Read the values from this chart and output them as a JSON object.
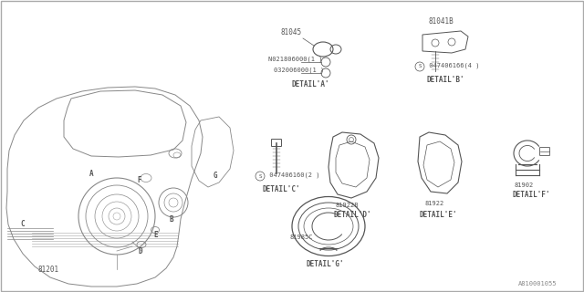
{
  "bg_color": "#ffffff",
  "border_color": "#aaaaaa",
  "line_color": "#555555",
  "line_color2": "#888888",
  "diagram_id": "A810001055",
  "labels": {
    "detail_a": "DETAIL'A'",
    "detail_b": "DETAIL'B'",
    "detail_c": "DETAIL'C'",
    "detail_d": "DETAIL'D'",
    "detail_e": "DETAIL'E'",
    "detail_f": "DETAIL'F'",
    "detail_g": "DETAIL'G'"
  },
  "part_numbers": {
    "main": "81201",
    "p81045": "81045",
    "p81041b": "81041B",
    "p021806000": "N021806000(1 )",
    "p032006000": "032006000(1 )",
    "p047406166": " 047406166(4 )",
    "p047406160": " 047406160(2 )",
    "p81922b": "81922B",
    "p81922": "81922",
    "p81902": "81902",
    "p81985c": "81985C"
  },
  "callouts": [
    "A",
    "B",
    "C",
    "D",
    "E",
    "F",
    "G"
  ]
}
